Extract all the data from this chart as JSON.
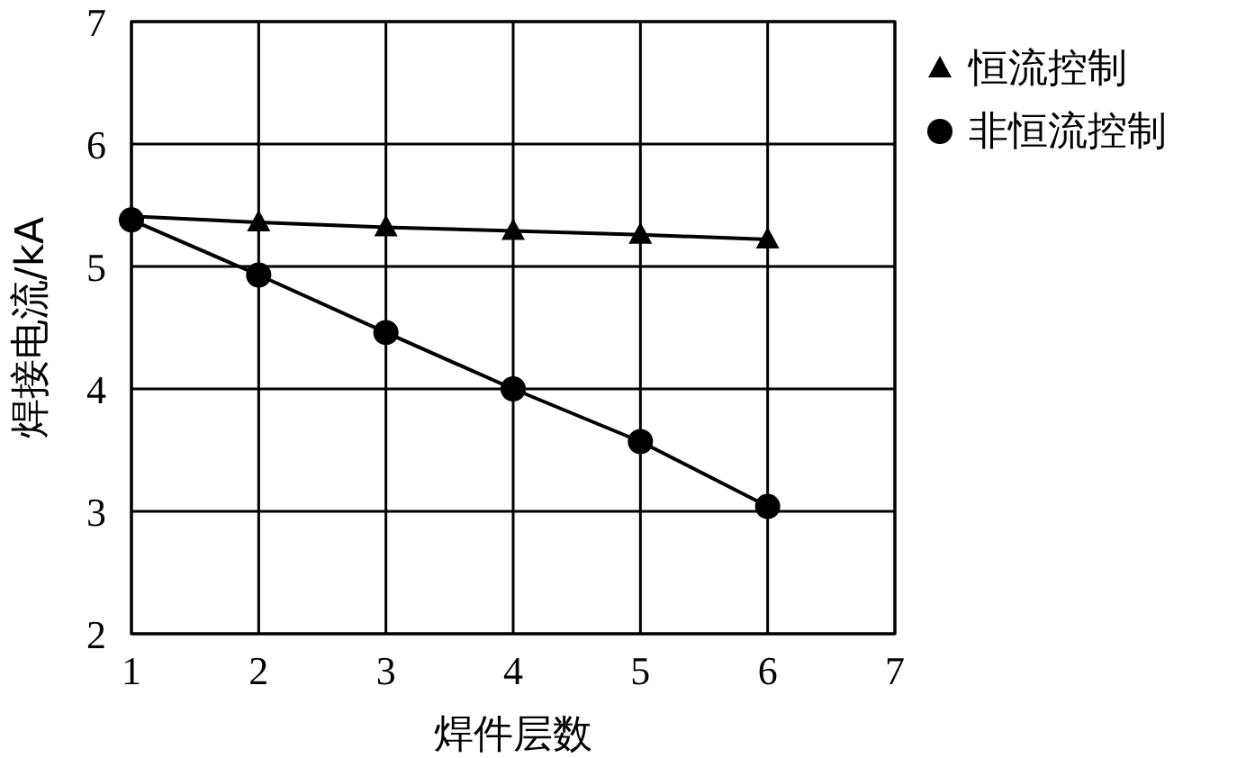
{
  "chart_data": {
    "type": "line",
    "xlabel": "焊件层数",
    "ylabel": "焊接电流/kA",
    "x": [
      1,
      2,
      3,
      4,
      5,
      6
    ],
    "series": [
      {
        "name": "恒流控制",
        "color": "#000000",
        "marker": "triangle",
        "values": [
          5.41,
          5.36,
          5.32,
          5.29,
          5.26,
          5.22
        ]
      },
      {
        "name": "非恒流控制",
        "color": "#000000",
        "marker": "circle",
        "values": [
          5.38,
          4.93,
          4.46,
          4.0,
          3.57,
          3.04
        ]
      }
    ],
    "xlim": [
      1,
      7
    ],
    "ylim": [
      2,
      7
    ],
    "xticks": [
      1,
      2,
      3,
      4,
      5,
      6,
      7
    ],
    "yticks": [
      2,
      3,
      4,
      5,
      6,
      7
    ],
    "grid": true,
    "legend": "top right",
    "line_style": "solid"
  }
}
